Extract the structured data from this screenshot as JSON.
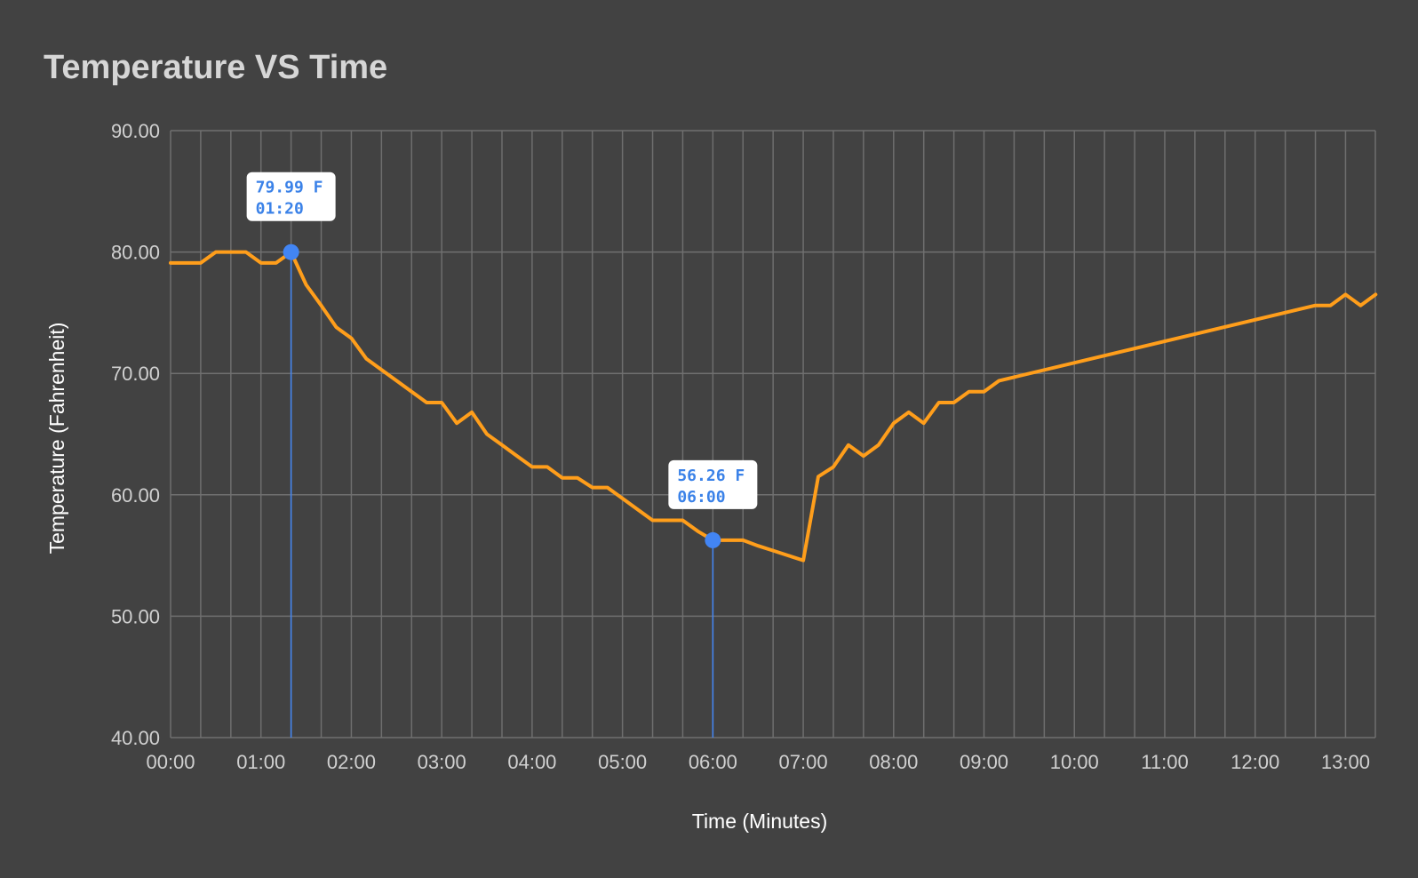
{
  "chart_data": {
    "type": "line",
    "title": "Temperature VS Time",
    "xlabel": "Time (Minutes)",
    "ylabel": "Temperature (Fahrenheit)",
    "ylim": [
      40,
      90
    ],
    "xlim_minutes": [
      0,
      13.33
    ],
    "y_ticks": [
      "90.00",
      "80.00",
      "70.00",
      "60.00",
      "50.00",
      "40.00"
    ],
    "y_tick_values": [
      90,
      80,
      70,
      60,
      50,
      40
    ],
    "x_ticks": [
      "00:00",
      "01:00",
      "02:00",
      "03:00",
      "04:00",
      "05:00",
      "06:00",
      "07:00",
      "08:00",
      "09:00",
      "10:00",
      "11:00",
      "12:00",
      "13:00"
    ],
    "x_tick_values": [
      0,
      1,
      2,
      3,
      4,
      5,
      6,
      7,
      8,
      9,
      10,
      11,
      12,
      13
    ],
    "grid": true,
    "line_color": "#ff9e1b",
    "marker_color": "#4285f4",
    "series": [
      {
        "x": [
          "00:00",
          "00:20",
          "00:30",
          "00:50",
          "01:00",
          "01:10",
          "01:20",
          "01:30",
          "01:40",
          "01:50",
          "02:00",
          "02:10",
          "02:20",
          "02:30",
          "02:40",
          "02:50",
          "03:00",
          "03:10",
          "03:20",
          "03:30",
          "03:40",
          "03:50",
          "04:00",
          "04:10",
          "04:20",
          "04:30",
          "04:40",
          "04:50",
          "05:00",
          "05:10",
          "05:20",
          "05:30",
          "05:40",
          "05:50",
          "06:00",
          "06:10",
          "06:20",
          "06:30",
          "06:40",
          "06:50",
          "07:00",
          "07:10",
          "07:20",
          "07:30",
          "07:40",
          "07:50",
          "08:00",
          "08:10",
          "08:20",
          "08:30",
          "08:40",
          "08:50",
          "09:00",
          "09:10",
          "12:40",
          "12:50",
          "13:00",
          "13:10",
          "13:20"
        ],
        "y": [
          79.1,
          79.1,
          80.0,
          80.0,
          79.1,
          79.1,
          79.99,
          77.3,
          75.6,
          73.8,
          72.9,
          71.2,
          70.3,
          69.4,
          68.5,
          67.6,
          67.6,
          65.9,
          66.8,
          65.0,
          64.1,
          63.2,
          62.3,
          62.3,
          61.4,
          61.4,
          60.6,
          60.6,
          59.7,
          58.8,
          57.9,
          57.9,
          57.9,
          57.0,
          56.26,
          56.26,
          56.26,
          55.8,
          55.4,
          55.0,
          54.6,
          61.5,
          62.3,
          64.1,
          63.2,
          64.1,
          65.9,
          66.8,
          65.9,
          67.6,
          67.6,
          68.5,
          68.5,
          69.4,
          75.6,
          75.6,
          76.5,
          75.6,
          76.5
        ]
      }
    ],
    "annotations": [
      {
        "x": "01:20",
        "y": 79.99,
        "line1": "79.99 F",
        "line2": "01:20"
      },
      {
        "x": "06:00",
        "y": 56.26,
        "line1": "56.26 F",
        "line2": "06:00"
      }
    ]
  }
}
